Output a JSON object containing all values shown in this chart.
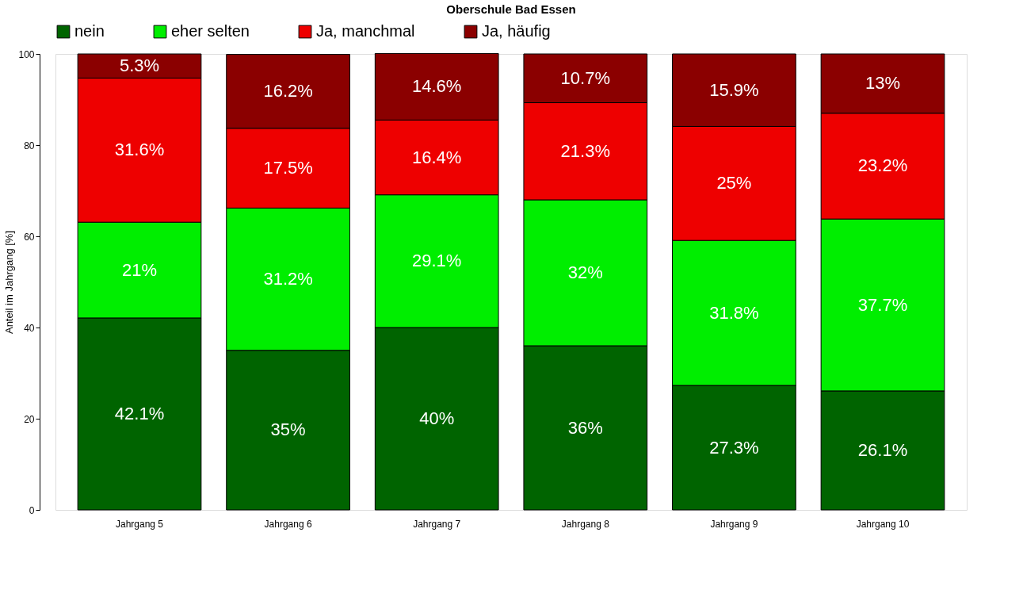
{
  "chart_data": {
    "type": "bar",
    "title": "Oberschule Bad Essen",
    "ylabel": "Anteil im Jahrgang [%]",
    "stacked": true,
    "legend": "top",
    "grid": false,
    "categories": [
      "Jahrgang 5",
      "Jahrgang 6",
      "Jahrgang 7",
      "Jahrgang 8",
      "Jahrgang 9",
      "Jahrgang 10"
    ],
    "ylim": [
      0,
      100
    ],
    "yticks": [
      0,
      20,
      40,
      60,
      80,
      100
    ],
    "series": [
      {
        "name": "nein",
        "color": "#006400",
        "values": [
          42.1,
          35,
          40,
          36,
          27.3,
          26.1
        ],
        "value_labels": [
          "42.1%",
          "35%",
          "40%",
          "36%",
          "27.3%",
          "26.1%"
        ]
      },
      {
        "name": "eher selten",
        "color": "#00ee00",
        "values": [
          21,
          31.2,
          29.1,
          32,
          31.8,
          37.7
        ],
        "value_labels": [
          "21%",
          "31.2%",
          "29.1%",
          "32%",
          "31.8%",
          "37.7%"
        ]
      },
      {
        "name": "Ja, manchmal",
        "color": "#ee0000",
        "values": [
          31.6,
          17.5,
          16.4,
          21.3,
          25,
          23.2
        ],
        "value_labels": [
          "31.6%",
          "17.5%",
          "16.4%",
          "21.3%",
          "25%",
          "23.2%"
        ]
      },
      {
        "name": "Ja, häufig",
        "color": "#8b0000",
        "values": [
          5.3,
          16.2,
          14.6,
          10.7,
          15.9,
          13
        ],
        "value_labels": [
          "5.3%",
          "16.2%",
          "14.6%",
          "10.7%",
          "15.9%",
          "13%"
        ]
      }
    ]
  }
}
